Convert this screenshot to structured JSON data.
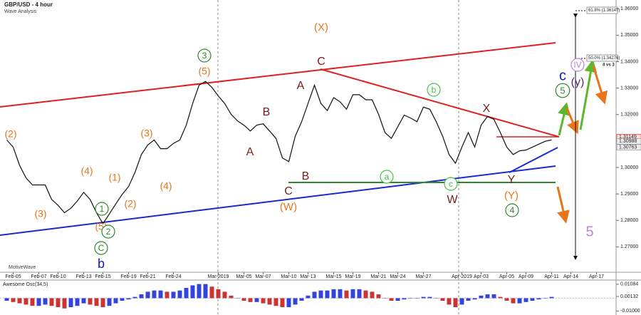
{
  "chart_data": [
    {
      "type": "line",
      "title": "GBP/USD - 4 hour",
      "subtitle": "Wave Analysis",
      "watermark": "MotiveWave",
      "categories": [
        null,
        "Feb-05",
        null,
        null,
        null,
        "Feb-07",
        null,
        null,
        "Feb-10",
        null,
        null,
        null,
        "Feb-13",
        null,
        null,
        "Feb-15",
        null,
        null,
        null,
        "Feb-19",
        null,
        null,
        "Feb-21",
        null,
        null,
        null,
        "Feb-24",
        null,
        null,
        null,
        null,
        null,
        null,
        "Mar-2019",
        null,
        null,
        null,
        "Mar-05",
        null,
        null,
        "Mar-07",
        null,
        null,
        null,
        "Mar-10",
        null,
        null,
        "Mar-13",
        null,
        null,
        null,
        "Mar-15",
        null,
        null,
        "Mar-19",
        null,
        null,
        null,
        "Mar-21",
        null,
        null,
        "Mar-24",
        null,
        null,
        null,
        "Mar-27",
        null,
        null,
        null,
        null,
        null,
        "Apr-2019",
        null,
        null,
        "Apr-03",
        null,
        null,
        null,
        "Apr-05",
        null,
        null,
        "Apr-09",
        null,
        null,
        null,
        "Apr-11",
        null,
        null,
        "Apr-14",
        null,
        null,
        null,
        "Apr-17",
        null,
        null,
        null
      ],
      "values": [
        1.3104,
        1.3077,
        1.3008,
        1.2961,
        1.2934,
        1.2934,
        1.2934,
        1.2879,
        1.2857,
        1.2829,
        1.2846,
        1.2873,
        1.2906,
        1.2879,
        1.2829,
        1.2788,
        1.2824,
        1.2862,
        1.2898,
        1.2928,
        1.2981,
        1.3049,
        1.3085,
        1.3104,
        1.3071,
        1.3071,
        1.3091,
        1.3104,
        1.316,
        1.3242,
        1.3311,
        1.3325,
        1.3303,
        1.327,
        1.3242,
        1.3201,
        1.3176,
        1.316,
        1.3138,
        1.316,
        1.3165,
        1.3138,
        1.311,
        1.3036,
        1.3022,
        1.3118,
        1.3173,
        1.3242,
        1.3311,
        1.3242,
        1.3215,
        1.3264,
        1.3248,
        1.322,
        1.3275,
        1.3275,
        1.3256,
        1.3256,
        1.3201,
        1.3132,
        1.311,
        1.3154,
        1.3198,
        1.3187,
        1.3173,
        1.3228,
        1.322,
        1.3173,
        1.3118,
        1.3049,
        1.3016,
        1.3077,
        1.3132,
        1.3077,
        1.316,
        1.3193,
        1.3182,
        1.3132,
        1.3077,
        1.3049,
        1.3063,
        1.3066,
        1.3077,
        1.3088,
        1.3099,
        1.3104,
        null,
        null,
        null,
        null,
        null,
        null,
        null,
        null,
        null,
        null
      ],
      "color": "#111111",
      "ylim": [
        1.2604,
        1.3633
      ],
      "yticks": [
        {
          "value": 1.27,
          "label": "1.27000"
        },
        {
          "value": 1.28,
          "label": "1.28000"
        },
        {
          "value": 1.29,
          "label": "1.29000"
        },
        {
          "value": 1.3,
          "label": "1.30000"
        },
        {
          "value": 1.31,
          "label": "1.31000"
        },
        {
          "value": 1.32,
          "label": "1.32000"
        },
        {
          "value": 1.33,
          "label": "1.33000"
        },
        {
          "value": 1.34,
          "label": "1.34000"
        },
        {
          "value": 1.35,
          "label": "1.35000"
        },
        {
          "value": 1.36,
          "label": "1.36000"
        }
      ],
      "price_labels": [
        1.31149,
        1.30988,
        1.30763
      ],
      "fib_labels": [
        "61.8% (1.36147)",
        "50.0% (1.34276)",
        "4 vs 3"
      ],
      "annotations": [
        {
          "text": "(2)",
          "color": "#e8751a"
        },
        {
          "text": "(3)",
          "color": "#e8751a"
        },
        {
          "text": "(4)",
          "color": "#e8751a"
        },
        {
          "text": "(5)",
          "color": "#e8751a"
        },
        {
          "text": "1",
          "color": "#2a8a2a",
          "circled": true
        },
        {
          "text": "2",
          "color": "#2a8a2a",
          "circled": true
        },
        {
          "text": "C",
          "color": "#2a8a2a",
          "circled": true
        },
        {
          "text": "b",
          "color": "#1a1aa8"
        },
        {
          "text": "(1)",
          "color": "#e8751a"
        },
        {
          "text": "(2)",
          "color": "#e8751a"
        },
        {
          "text": "(3)",
          "color": "#e8751a"
        },
        {
          "text": "(4)",
          "color": "#e8751a"
        },
        {
          "text": "3",
          "color": "#2a8a2a",
          "circled": true
        },
        {
          "text": "(5)",
          "color": "#e8751a"
        },
        {
          "text": "A",
          "color": "#7b1a1a"
        },
        {
          "text": "B",
          "color": "#7b1a1a"
        },
        {
          "text": "A",
          "color": "#7b1a1a"
        },
        {
          "text": "B",
          "color": "#7b1a1a"
        },
        {
          "text": "C",
          "color": "#7b1a1a"
        },
        {
          "text": "(W)",
          "color": "#e8751a"
        },
        {
          "text": "(X)",
          "color": "#e8751a"
        },
        {
          "text": "C",
          "color": "#7b1a1a"
        },
        {
          "text": "b",
          "color": "#3cc43c",
          "circled": true
        },
        {
          "text": "a",
          "color": "#3cc43c",
          "circled": true
        },
        {
          "text": "c",
          "color": "#3cc43c",
          "circled": true
        },
        {
          "text": "W",
          "color": "#7b1a1a"
        },
        {
          "text": "X",
          "color": "#7b1a1a"
        },
        {
          "text": "Y",
          "color": "#7b1a1a"
        },
        {
          "text": "(Y)",
          "color": "#e8751a"
        },
        {
          "text": "4",
          "color": "#2a8a2a",
          "circled": true
        },
        {
          "text": "IV",
          "color": "#c080e0",
          "circled": true
        },
        {
          "text": "c",
          "color": "#1a1aa8"
        },
        {
          "text": "(y)",
          "color": "#5a2a7a"
        },
        {
          "text": "5",
          "color": "#2a8a2a",
          "circled": true
        },
        {
          "text": "5",
          "color": "#c080e0"
        }
      ]
    },
    {
      "type": "bar",
      "title": "Awesome Osc(34,5)",
      "values": [
        -0.002,
        -0.003,
        -0.004,
        -0.005,
        -0.006,
        -0.006,
        -0.005,
        -0.006,
        -0.007,
        -0.008,
        -0.007,
        -0.006,
        -0.004,
        -0.005,
        -0.006,
        -0.007,
        -0.006,
        -0.004,
        -0.002,
        -0.001,
        0.001,
        0.003,
        0.005,
        0.006,
        0.006,
        0.005,
        0.005,
        0.006,
        0.008,
        0.01,
        0.011,
        0.011,
        0.009,
        0.007,
        0.005,
        0.002,
        0.0,
        -0.002,
        -0.003,
        -0.003,
        -0.004,
        -0.005,
        -0.006,
        -0.007,
        -0.007,
        -0.005,
        -0.002,
        0.002,
        0.005,
        0.006,
        0.006,
        0.007,
        0.007,
        0.006,
        0.007,
        0.007,
        0.006,
        0.005,
        0.003,
        0.0,
        -0.002,
        -0.002,
        -0.001,
        0.0,
        0.0,
        0.001,
        0.001,
        0.0,
        -0.002,
        -0.005,
        -0.007,
        -0.005,
        -0.002,
        -0.001,
        0.002,
        0.003,
        0.003,
        0.001,
        -0.002,
        -0.004,
        -0.004,
        -0.003,
        -0.002,
        -0.001,
        0.0,
        0.001,
        null,
        null,
        null,
        null,
        null,
        null,
        null,
        null,
        null,
        null
      ],
      "up_color": "#3344dd",
      "down_color": "#cc3333",
      "ylim": [
        -0.012,
        0.013
      ],
      "yticks": [
        0.01084,
        0.00132,
        {
          "value": -0.01,
          "label": "-0.01000"
        }
      ]
    }
  ]
}
